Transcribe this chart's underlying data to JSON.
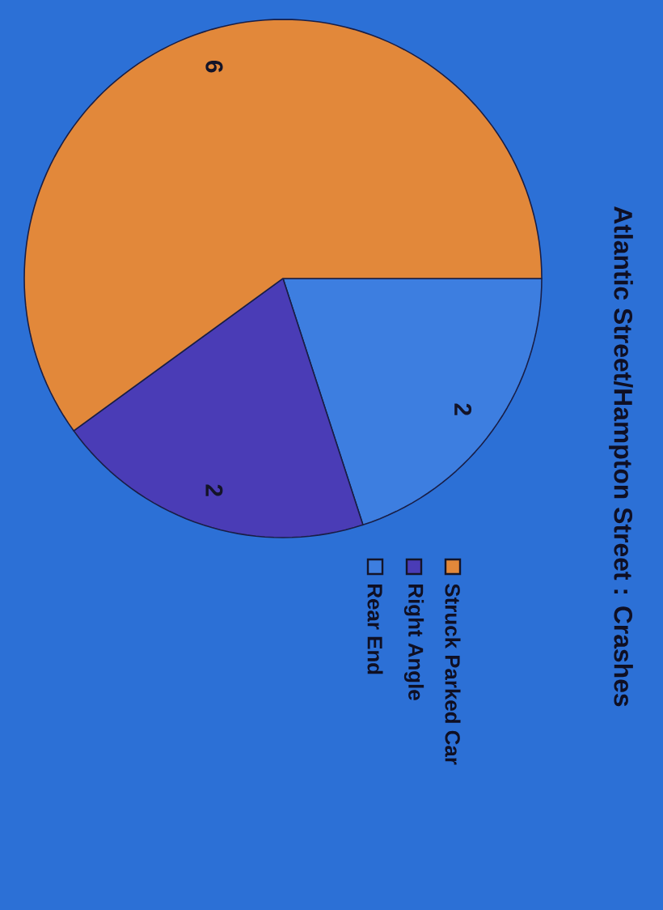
{
  "chart_data": {
    "type": "pie",
    "title": "Atlantic Street/Hampton Street : Crashes",
    "categories": [
      "Rear End",
      "Right Angle",
      "Struck Parked Car"
    ],
    "values": [
      2,
      2,
      6
    ],
    "colors": [
      "#3d7ee0",
      "#4a3cb6",
      "#e2883a"
    ],
    "data_labels": true,
    "legend": "right"
  }
}
